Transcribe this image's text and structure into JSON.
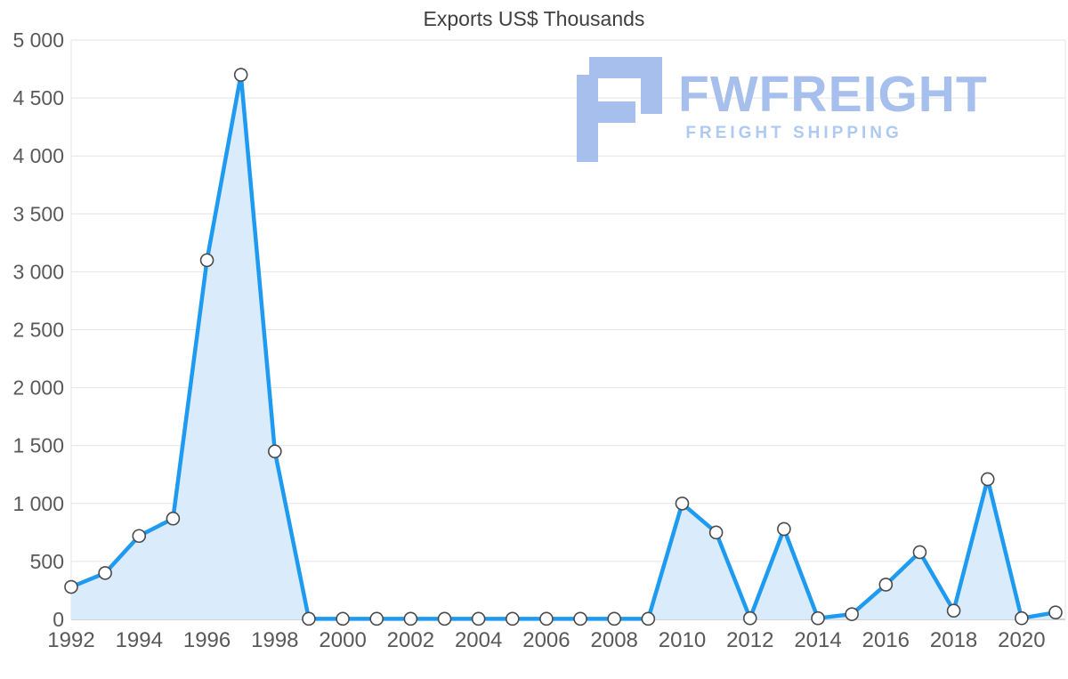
{
  "title": "Exports US$ Thousands",
  "watermark": {
    "brand": "FWFREIGHT",
    "tagline": "FREIGHT SHIPPING"
  },
  "colors": {
    "line": "#1e9bf0",
    "area": "#daecfb",
    "grid": "#e4e4e4",
    "axis": "#a8a8a8",
    "tick_text": "#595959",
    "watermark": "#a6bfec",
    "marker_fill": "#ffffff",
    "marker_stroke": "#4a4a4a"
  },
  "chart_data": {
    "type": "area",
    "title": "Exports US$ Thousands",
    "xlabel": "",
    "ylabel": "",
    "x": [
      1992,
      1993,
      1994,
      1995,
      1996,
      1997,
      1998,
      1999,
      2000,
      2001,
      2002,
      2003,
      2004,
      2005,
      2006,
      2007,
      2008,
      2009,
      2010,
      2011,
      2012,
      2013,
      2014,
      2015,
      2016,
      2017,
      2018,
      2019,
      2020,
      2021
    ],
    "values": [
      280,
      400,
      720,
      870,
      3100,
      4700,
      1450,
      5,
      5,
      5,
      5,
      5,
      5,
      5,
      5,
      5,
      5,
      5,
      1000,
      750,
      10,
      780,
      10,
      45,
      300,
      580,
      75,
      1210,
      10,
      60
    ],
    "ylim": [
      0,
      5000
    ],
    "ytick_step": 500,
    "ytick_values": [
      0,
      500,
      1000,
      1500,
      2000,
      2500,
      3000,
      3500,
      4000,
      4500,
      5000
    ],
    "ytick_labels": [
      "0",
      "500",
      "1 000",
      "1 500",
      "2 000",
      "2 500",
      "3 000",
      "3 500",
      "4 000",
      "4 500",
      "5 000"
    ],
    "xtick_values": [
      1992,
      1994,
      1996,
      1998,
      2000,
      2002,
      2004,
      2006,
      2008,
      2010,
      2012,
      2014,
      2016,
      2018,
      2020
    ],
    "xtick_labels": [
      "1992",
      "1994",
      "1996",
      "1998",
      "2000",
      "2002",
      "2004",
      "2006",
      "2008",
      "2010",
      "2012",
      "2014",
      "2016",
      "2018",
      "2020"
    ],
    "grid": "horizontal",
    "legend": "none",
    "marker": "circle"
  }
}
